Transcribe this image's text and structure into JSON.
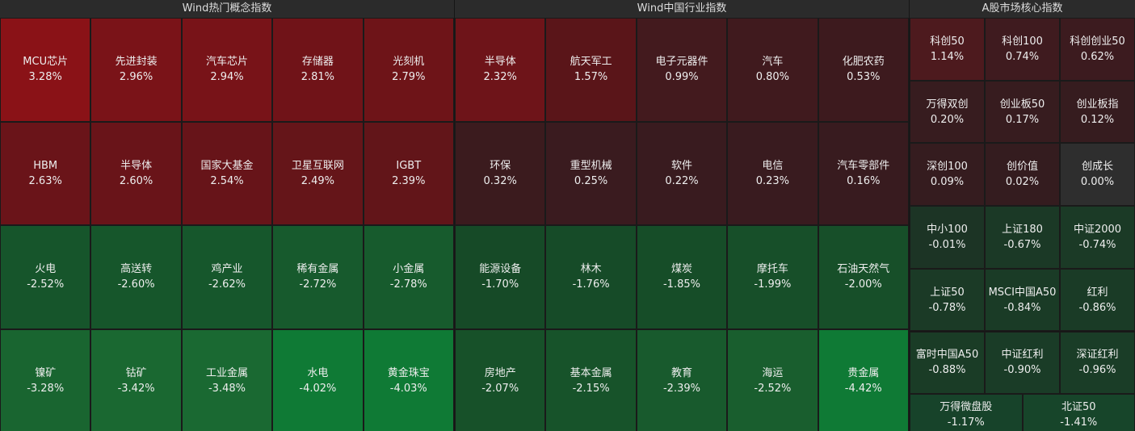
{
  "panels": [
    {
      "title": "Wind热门概念指数",
      "cells": [
        {
          "name": "MCU芯片",
          "change": "3.28%",
          "color": "#8a1217"
        },
        {
          "name": "先进封装",
          "change": "2.96%",
          "color": "#7a1318"
        },
        {
          "name": "汽车芯片",
          "change": "2.94%",
          "color": "#781318"
        },
        {
          "name": "存储器",
          "change": "2.81%",
          "color": "#701318"
        },
        {
          "name": "光刻机",
          "change": "2.79%",
          "color": "#6e1418"
        },
        {
          "name": "HBM",
          "change": "2.63%",
          "color": "#6a1419"
        },
        {
          "name": "半导体",
          "change": "2.60%",
          "color": "#691419"
        },
        {
          "name": "国家大基金",
          "change": "2.54%",
          "color": "#671419"
        },
        {
          "name": "卫星互联网",
          "change": "2.49%",
          "color": "#651519"
        },
        {
          "name": "IGBT",
          "change": "2.39%",
          "color": "#621519"
        },
        {
          "name": "火电",
          "change": "-2.52%",
          "color": "#16552b"
        },
        {
          "name": "高送转",
          "change": "-2.60%",
          "color": "#16562b"
        },
        {
          "name": "鸡产业",
          "change": "-2.62%",
          "color": "#16572c"
        },
        {
          "name": "稀有金属",
          "change": "-2.72%",
          "color": "#175a2d"
        },
        {
          "name": "小金属",
          "change": "-2.78%",
          "color": "#175b2d"
        },
        {
          "name": "镍矿",
          "change": "-3.28%",
          "color": "#196530"
        },
        {
          "name": "钴矿",
          "change": "-3.42%",
          "color": "#1a6831"
        },
        {
          "name": "工业金属",
          "change": "-3.48%",
          "color": "#1a6932"
        },
        {
          "name": "水电",
          "change": "-4.02%",
          "color": "#0f7a35"
        },
        {
          "name": "黄金珠宝",
          "change": "-4.03%",
          "color": "#0f7a35"
        }
      ]
    },
    {
      "title": "Wind中国行业指数",
      "cells": [
        {
          "name": "半导体",
          "change": "2.32%",
          "color": "#6e1419"
        },
        {
          "name": "航天军工",
          "change": "1.57%",
          "color": "#5a1519"
        },
        {
          "name": "电子元器件",
          "change": "0.99%",
          "color": "#431a1e"
        },
        {
          "name": "汽车",
          "change": "0.80%",
          "color": "#401a1e"
        },
        {
          "name": "化肥农药",
          "change": "0.53%",
          "color": "#3d1a1e"
        },
        {
          "name": "环保",
          "change": "0.32%",
          "color": "#3b1b1e"
        },
        {
          "name": "重型机械",
          "change": "0.25%",
          "color": "#3a1b1f"
        },
        {
          "name": "软件",
          "change": "0.22%",
          "color": "#391b1f"
        },
        {
          "name": "电信",
          "change": "0.23%",
          "color": "#391b1f"
        },
        {
          "name": "汽车零部件",
          "change": "0.16%",
          "color": "#381b1f"
        },
        {
          "name": "能源设备",
          "change": "-1.70%",
          "color": "#164a27"
        },
        {
          "name": "林木",
          "change": "-1.76%",
          "color": "#164b28"
        },
        {
          "name": "煤炭",
          "change": "-1.85%",
          "color": "#164d28"
        },
        {
          "name": "摩托车",
          "change": "-1.99%",
          "color": "#174f29"
        },
        {
          "name": "石油天然气",
          "change": "-2.00%",
          "color": "#174f29"
        },
        {
          "name": "房地产",
          "change": "-2.07%",
          "color": "#175129"
        },
        {
          "name": "基本金属",
          "change": "-2.15%",
          "color": "#17532a"
        },
        {
          "name": "教育",
          "change": "-2.39%",
          "color": "#185a2d"
        },
        {
          "name": "海运",
          "change": "-2.52%",
          "color": "#195e2e"
        },
        {
          "name": "贵金属",
          "change": "-4.42%",
          "color": "#0f7a35"
        }
      ]
    },
    {
      "title": "A股市场核心指数",
      "cells": [
        {
          "name": "科创50",
          "change": "1.14%",
          "color": "#4d1a1e"
        },
        {
          "name": "科创100",
          "change": "0.74%",
          "color": "#3f1b1f"
        },
        {
          "name": "科创创业50",
          "change": "0.62%",
          "color": "#3c1b1f"
        },
        {
          "name": "万得双创",
          "change": "0.20%",
          "color": "#371c1f"
        },
        {
          "name": "创业板50",
          "change": "0.17%",
          "color": "#371c1f"
        },
        {
          "name": "创业板指",
          "change": "0.12%",
          "color": "#361c1f"
        },
        {
          "name": "深创100",
          "change": "0.09%",
          "color": "#351c1f"
        },
        {
          "name": "创价值",
          "change": "0.02%",
          "color": "#341c1f"
        },
        {
          "name": "创成长",
          "change": "0.00%",
          "color": "#2e2e2e"
        },
        {
          "name": "中小100",
          "change": "-0.01%",
          "color": "#1c3425"
        },
        {
          "name": "上证180",
          "change": "-0.67%",
          "color": "#1b3926"
        },
        {
          "name": "中证2000",
          "change": "-0.74%",
          "color": "#1b3a26"
        },
        {
          "name": "上证50",
          "change": "-0.78%",
          "color": "#1b3a26"
        },
        {
          "name": "MSCI中国A50",
          "change": "-0.84%",
          "color": "#1a3b26"
        },
        {
          "name": "红利",
          "change": "-0.86%",
          "color": "#1a3b26"
        },
        {
          "name": "富时中国A50",
          "change": "-0.88%",
          "color": "#1a3c26"
        },
        {
          "name": "中证红利",
          "change": "-0.90%",
          "color": "#1a3c27"
        },
        {
          "name": "深证红利",
          "change": "-0.96%",
          "color": "#1a3d27"
        },
        {
          "name": "万得微盘股",
          "change": "-1.17%",
          "color": "#17432a"
        },
        {
          "name": "北证50",
          "change": "-1.41%",
          "color": "#17452a"
        }
      ]
    }
  ]
}
